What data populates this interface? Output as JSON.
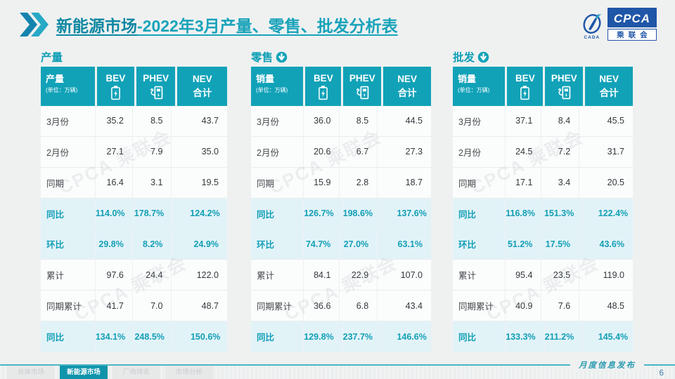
{
  "header": {
    "title_main": "新能源市场",
    "title_rest": "-2022年3月产量、零售、批发分析表",
    "logo": {
      "acronym": "CPCA",
      "name": "乘联会",
      "sub": "CADA"
    }
  },
  "watermark": "CPCA 乘联会",
  "sections": [
    {
      "title": "产量",
      "arrow": false,
      "corner_label": "产量",
      "corner_unit": "(单位：万辆)",
      "columns": [
        {
          "label": "BEV",
          "icon": "battery-icon"
        },
        {
          "label": "PHEV",
          "icon": "charger-icon"
        },
        {
          "label": "NEV",
          "label2": "合计"
        }
      ],
      "rows": [
        {
          "label": "3月份",
          "values": [
            "35.2",
            "8.5",
            "43.7"
          ],
          "highlight": false
        },
        {
          "label": "2月份",
          "values": [
            "27.1",
            "7.9",
            "35.0"
          ],
          "highlight": false
        },
        {
          "label": "同期",
          "values": [
            "16.4",
            "3.1",
            "19.5"
          ],
          "highlight": false
        },
        {
          "label": "同比",
          "values": [
            "114.0%",
            "178.7%",
            "124.2%"
          ],
          "highlight": true
        },
        {
          "label": "环比",
          "values": [
            "29.8%",
            "8.2%",
            "24.9%"
          ],
          "highlight": true
        },
        {
          "label": "累计",
          "values": [
            "97.6",
            "24.4",
            "122.0"
          ],
          "highlight": false
        },
        {
          "label": "同期累计",
          "values": [
            "41.7",
            "7.0",
            "48.7"
          ],
          "highlight": false
        },
        {
          "label": "同比",
          "values": [
            "134.1%",
            "248.5%",
            "150.6%"
          ],
          "highlight": true
        }
      ]
    },
    {
      "title": "零售",
      "arrow": true,
      "corner_label": "销量",
      "corner_unit": "(单位：万辆)",
      "columns": [
        {
          "label": "BEV",
          "icon": "battery-icon"
        },
        {
          "label": "PHEV",
          "icon": "charger-icon"
        },
        {
          "label": "NEV",
          "label2": "合计"
        }
      ],
      "rows": [
        {
          "label": "3月份",
          "values": [
            "36.0",
            "8.5",
            "44.5"
          ],
          "highlight": false
        },
        {
          "label": "2月份",
          "values": [
            "20.6",
            "6.7",
            "27.3"
          ],
          "highlight": false
        },
        {
          "label": "同期",
          "values": [
            "15.9",
            "2.8",
            "18.7"
          ],
          "highlight": false
        },
        {
          "label": "同比",
          "values": [
            "126.7%",
            "198.6%",
            "137.6%"
          ],
          "highlight": true
        },
        {
          "label": "环比",
          "values": [
            "74.7%",
            "27.0%",
            "63.1%"
          ],
          "highlight": true
        },
        {
          "label": "累计",
          "values": [
            "84.1",
            "22.9",
            "107.0"
          ],
          "highlight": false
        },
        {
          "label": "同期累计",
          "values": [
            "36.6",
            "6.8",
            "43.4"
          ],
          "highlight": false
        },
        {
          "label": "同比",
          "values": [
            "129.8%",
            "237.7%",
            "146.6%"
          ],
          "highlight": true
        }
      ]
    },
    {
      "title": "批发",
      "arrow": true,
      "corner_label": "销量",
      "corner_unit": "(单位：万辆)",
      "columns": [
        {
          "label": "BEV",
          "icon": "battery-icon"
        },
        {
          "label": "PHEV",
          "icon": "charger-icon"
        },
        {
          "label": "NEV",
          "label2": "合计"
        }
      ],
      "rows": [
        {
          "label": "3月份",
          "values": [
            "37.1",
            "8.4",
            "45.5"
          ],
          "highlight": false
        },
        {
          "label": "2月份",
          "values": [
            "24.5",
            "7.2",
            "31.7"
          ],
          "highlight": false
        },
        {
          "label": "同期",
          "values": [
            "17.1",
            "3.4",
            "20.5"
          ],
          "highlight": false
        },
        {
          "label": "同比",
          "values": [
            "116.8%",
            "151.3%",
            "122.4%"
          ],
          "highlight": true
        },
        {
          "label": "环比",
          "values": [
            "51.2%",
            "17.5%",
            "43.6%"
          ],
          "highlight": true
        },
        {
          "label": "累计",
          "values": [
            "95.4",
            "23.5",
            "119.0"
          ],
          "highlight": false
        },
        {
          "label": "同期累计",
          "values": [
            "40.9",
            "7.6",
            "48.5"
          ],
          "highlight": false
        },
        {
          "label": "同比",
          "values": [
            "133.3%",
            "211.2%",
            "145.4%"
          ],
          "highlight": true
        }
      ]
    }
  ],
  "footer": {
    "tabs": [
      {
        "label": "总体市场",
        "active": false
      },
      {
        "label": "新能源市场",
        "active": true
      },
      {
        "label": "厂商排名",
        "active": false
      },
      {
        "label": "市场分析",
        "active": false
      }
    ],
    "publication": "月度信息发布",
    "page": "6"
  }
}
